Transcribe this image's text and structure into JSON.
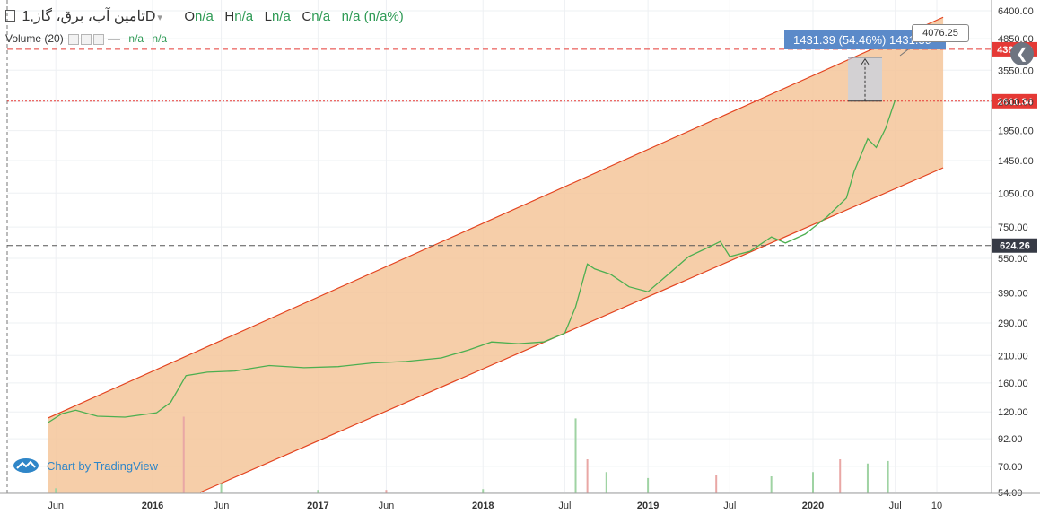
{
  "legend": {
    "symbol": "تامین آب، برق، گاز",
    "interval": "1D",
    "open_label": "O",
    "open_value": "n/a",
    "high_label": "H",
    "high_value": "n/a",
    "low_label": "L",
    "low_value": "n/a",
    "close_label": "C",
    "close_value": "n/a",
    "change_value": "n/a (n/a%)"
  },
  "volume_legend": {
    "label": "Volume (20)",
    "value_1": "n/a",
    "value_2": "n/a"
  },
  "measure": {
    "label": "1431.39 (54.46%) 1431.39",
    "tooltip": "4076.25"
  },
  "price_tags": {
    "tag_upper": "4369.70",
    "tag_last": "2611.34",
    "tag_lower": "624.26"
  },
  "watermark": "Chart by TradingView",
  "colors": {
    "up": "#4caf50",
    "down": "#ef5350",
    "channel_fill": "#f5c59a",
    "channel_line": "#e3431f",
    "tag_red": "#e53935",
    "tag_dark": "#363a45",
    "measure_blue": "#5b8ac9"
  },
  "chart_data": {
    "type": "line",
    "scale": "log",
    "title": "",
    "xlabel": "",
    "ylabel": "",
    "y_ticks": [
      "6400.00",
      "4850.00",
      "3550.00",
      "2600.00",
      "1950.00",
      "1450.00",
      "1050.00",
      "750.00",
      "550.00",
      "390.00",
      "290.00",
      "210.00",
      "160.00",
      "120.00",
      "92.00",
      "70.00",
      "54.00"
    ],
    "x_ticks": [
      "Jun",
      "2016",
      "Jun",
      "2017",
      "Jun",
      "2018",
      "Jul",
      "2019",
      "Jul",
      "2020",
      "Jul",
      "10"
    ],
    "horizontal_lines": [
      4369.7,
      2611.34,
      624.26
    ],
    "series": [
      {
        "x": [
          "2015-05-15",
          "2015-06-15",
          "2015-07-15",
          "2015-09-01",
          "2015-11-01",
          "2016-01-10",
          "2016-02-10",
          "2016-03-15",
          "2016-05-01",
          "2016-07-01",
          "2016-09-15",
          "2016-12-01",
          "2017-02-15",
          "2017-05-01",
          "2017-07-15",
          "2017-10-01",
          "2017-12-01",
          "2018-01-20",
          "2018-03-20",
          "2018-05-15",
          "2018-07-01",
          "2018-07-25",
          "2018-08-20",
          "2018-09-05",
          "2018-10-10",
          "2018-11-20",
          "2019-01-01",
          "2019-02-15",
          "2019-04-01",
          "2019-05-20",
          "2019-06-10",
          "2019-07-01",
          "2019-08-15",
          "2019-10-01",
          "2019-11-01",
          "2019-12-15",
          "2020-02-01",
          "2020-03-15",
          "2020-04-01",
          "2020-05-01",
          "2020-05-20",
          "2020-06-10",
          "2020-06-25",
          "2020-07-01"
        ],
        "y": [
          108,
          118,
          122,
          115,
          114,
          119,
          132,
          172,
          178,
          180,
          190,
          186,
          188,
          195,
          198,
          205,
          222,
          240,
          236,
          240,
          262,
          340,
          520,
          495,
          470,
          415,
          395,
          470,
          560,
          620,
          650,
          560,
          590,
          680,
          640,
          700,
          830,
          1000,
          1300,
          1800,
          1650,
          2000,
          2450,
          2650
        ]
      }
    ],
    "volume": {
      "y_max": 100,
      "x": [
        "2015-06-01",
        "2016-03-10",
        "2016-06-01",
        "2017-01-01",
        "2017-06-01",
        "2018-01-01",
        "2018-07-25",
        "2018-08-20",
        "2018-10-01",
        "2019-01-01",
        "2019-06-01",
        "2019-10-01",
        "2020-01-01",
        "2020-03-01",
        "2020-05-01",
        "2020-06-15"
      ],
      "values": [
        6,
        90,
        12,
        4,
        4,
        5,
        88,
        40,
        25,
        18,
        22,
        20,
        25,
        40,
        35,
        38
      ]
    },
    "channel": {
      "upper": [
        [
          "2015-05-15",
          113
        ],
        [
          "2020-10-15",
          6000
        ]
      ],
      "lower": [
        [
          "2016-04-15",
          54
        ],
        [
          "2020-10-15",
          1350
        ]
      ]
    }
  }
}
